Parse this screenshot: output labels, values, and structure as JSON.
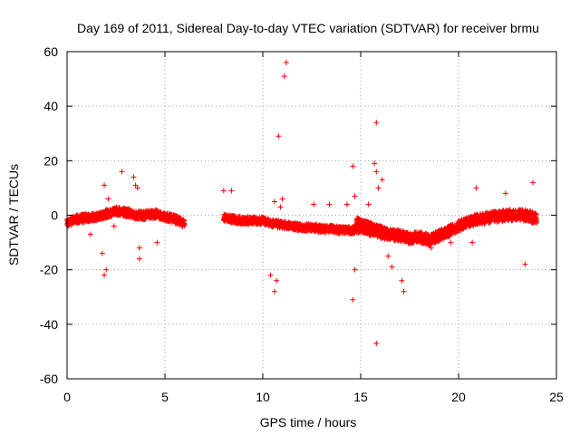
{
  "chart_data": {
    "type": "scatter",
    "title": "Day 169 of 2011, Sidereal Day-to-day VTEC variation (SDTVAR) for receiver brmu",
    "xlabel": "GPS time / hours",
    "ylabel": "SDTVAR / TECUs",
    "xlim": [
      0,
      25
    ],
    "ylim": [
      -60,
      60
    ],
    "xticks": [
      0,
      5,
      10,
      15,
      20,
      25
    ],
    "yticks": [
      -60,
      -40,
      -20,
      0,
      20,
      40,
      60
    ],
    "xtick_labels": [
      "0",
      "5",
      "10",
      "15",
      "20",
      "25"
    ],
    "ytick_labels": [
      "-60",
      "-40",
      "-20",
      "0",
      "20",
      "40",
      "60"
    ],
    "grid": true,
    "marker": "+",
    "color": "#ff0000",
    "series": [
      {
        "name": "SDTVAR",
        "dense_segments": [
          {
            "x": [
              0.0,
              0.5,
              1.0,
              1.5,
              2.0,
              2.5,
              3.0,
              3.5,
              4.0,
              4.5,
              5.0,
              5.5,
              6.0
            ],
            "y": [
              -2.5,
              -1.5,
              -1.0,
              -0.5,
              0.5,
              1.5,
              1.0,
              0.0,
              0.0,
              0.5,
              -0.5,
              -1.5,
              -3.0
            ],
            "spread": 1.5
          },
          {
            "x": [
              8.0,
              8.5,
              9.0,
              9.5,
              10.0,
              10.5,
              11.0,
              11.5,
              12.0,
              12.5,
              13.0,
              13.5,
              14.0,
              14.5,
              15.0
            ],
            "y": [
              -1.0,
              -1.5,
              -2.0,
              -2.0,
              -2.0,
              -3.0,
              -3.5,
              -4.0,
              -4.5,
              -4.5,
              -5.0,
              -5.0,
              -5.5,
              -5.5,
              -5.0
            ],
            "spread": 1.3
          },
          {
            "x": [
              15.0,
              15.5,
              16.0,
              16.5,
              17.0,
              17.5,
              18.0,
              18.5,
              19.0,
              19.5,
              20.0,
              20.5,
              21.0,
              21.5,
              22.0,
              22.5,
              23.0,
              23.5,
              24.0
            ],
            "y": [
              -4.0,
              -5.5,
              -6.5,
              -7.0,
              -7.5,
              -8.5,
              -8.0,
              -9.0,
              -7.5,
              -6.0,
              -4.0,
              -2.5,
              -1.5,
              -1.0,
              -0.5,
              0.0,
              0.0,
              0.0,
              -1.5
            ],
            "spread": 2.0
          },
          {
            "x": [
              14.8,
              15.2,
              15.6,
              16.0,
              16.4
            ],
            "y": [
              -2.0,
              -3.0,
              -4.0,
              -5.0,
              -6.0
            ],
            "spread": 1.0
          }
        ],
        "x": [
          1.9,
          2.0,
          1.9,
          2.1,
          1.2,
          2.8,
          3.4,
          3.5,
          3.7,
          3.7,
          3.6,
          4.6,
          1.8,
          2.4,
          8.0,
          8.4,
          10.6,
          10.9,
          10.4,
          10.6,
          10.7,
          11.0,
          11.1,
          11.2,
          10.8,
          13.4,
          14.3,
          14.6,
          14.7,
          14.6,
          14.7,
          15.7,
          15.8,
          15.8,
          15.8,
          15.9,
          16.1,
          16.4,
          16.6,
          17.1,
          17.2,
          18.6,
          19.6,
          20.7,
          20.9,
          22.4,
          23.4,
          23.8,
          15.4,
          12.6
        ],
        "y": [
          11,
          -20,
          -22,
          6,
          -7,
          16,
          14,
          11,
          -12,
          -16,
          10,
          -10,
          -14,
          -4,
          9,
          9,
          5,
          3,
          -22,
          -28,
          -24,
          6,
          51,
          56,
          29,
          4,
          4,
          18,
          7,
          -31,
          -20,
          19,
          34,
          -47,
          16,
          10,
          13,
          -15,
          -19,
          -24,
          -28,
          -12,
          -10,
          -10,
          10,
          8,
          -18,
          12,
          4,
          4
        ]
      }
    ]
  }
}
